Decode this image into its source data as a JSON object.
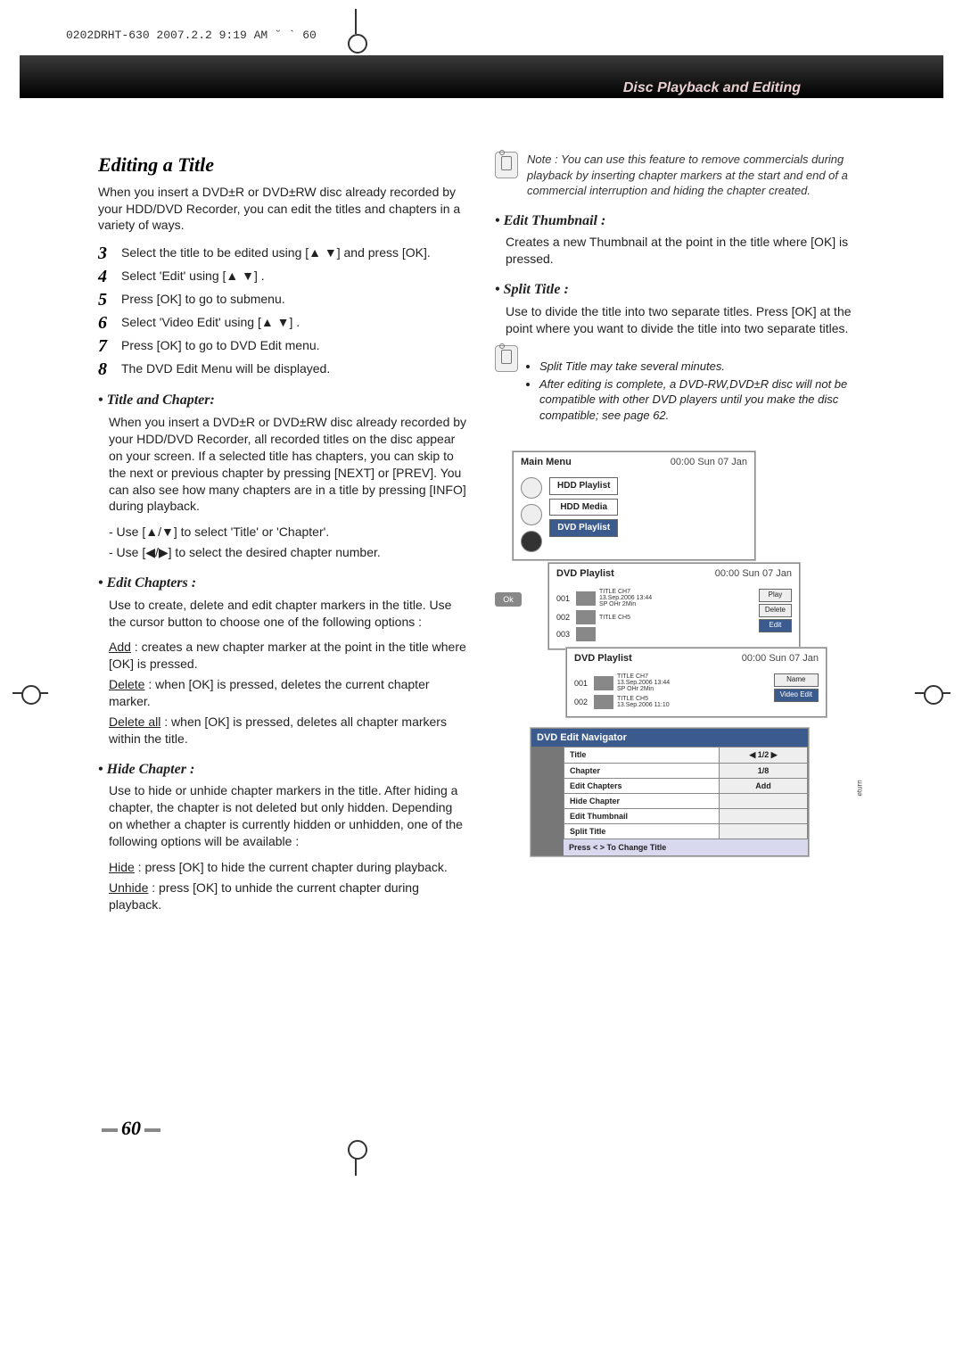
{
  "header_mark": "0202DRHT-630 2007.2.2 9:19 AM ˘   ` 60",
  "topbar_label": "Disc Playback and Editing",
  "left": {
    "title": "Editing a Title",
    "intro": "When you insert a DVD±R or DVD±RW disc already recorded by your HDD/DVD Recorder, you can edit the titles and chapters in a variety of ways.",
    "steps": [
      {
        "n": "3",
        "t": "Select the title to be edited using [▲ ▼] and press [OK]."
      },
      {
        "n": "4",
        "t": "Select 'Edit' using [▲ ▼] ."
      },
      {
        "n": "5",
        "t": "Press [OK] to go to submenu."
      },
      {
        "n": "6",
        "t": "Select 'Video Edit' using [▲ ▼] ."
      },
      {
        "n": "7",
        "t": "Press [OK] to go to DVD Edit menu."
      },
      {
        "n": "8",
        "t": "The DVD Edit Menu will be displayed."
      }
    ],
    "tc_head": "Title and Chapter:",
    "tc_body": "When you insert a DVD±R or DVD±RW disc already recorded by your HDD/DVD Recorder, all recorded titles on the disc appear on your screen. If a selected title has chapters, you can skip to the next or previous chapter by pressing [NEXT] or [PREV]. You can also see how many chapters are in a title by pressing [INFO] during playback.",
    "tc_sub1": "- Use [▲/▼] to select 'Title' or 'Chapter'.",
    "tc_sub2": "- Use [◀/▶] to select the desired chapter number.",
    "ec_head": "Edit Chapters :",
    "ec_body": "Use to create, delete and edit chapter markers in the title. Use the cursor button to choose one of the following options :",
    "ec_add_u": "Add",
    "ec_add": " : creates a new chapter marker at the point in the title where [OK] is pressed.",
    "ec_del_u": "Delete",
    "ec_del": " : when [OK] is pressed, deletes the current chapter marker.",
    "ec_delall_u": "Delete all",
    "ec_delall": " : when [OK] is pressed, deletes all chapter markers within the title.",
    "hc_head": "Hide Chapter :",
    "hc_body": "Use to hide or unhide chapter markers in the title. After hiding a chapter, the chapter is not deleted but only hidden. Depending on whether a chapter is currently hidden or unhidden, one of the following options will be available :",
    "hc_hide_u": "Hide",
    "hc_hide": " : press [OK] to hide the current chapter during playback.",
    "hc_unhide_u": "Unhide",
    "hc_unhide": " : press [OK] to unhide the current chapter during playback."
  },
  "right": {
    "note1": "Note : You can use this feature to remove commercials during playback by inserting chapter markers at the start and end of a commercial interruption and hiding the chapter created.",
    "et_head": "Edit Thumbnail :",
    "et_body": "Creates a new Thumbnail at the point in the title where [OK] is pressed.",
    "st_head": "Split Title :",
    "st_body": "Use to divide the title into two separate titles. Press [OK] at the point where you want to divide the title into two separate titles.",
    "note2a": "Split Title may take several minutes.",
    "note2b": "After editing is complete, a DVD-RW,DVD±R disc will not be compatible with other DVD players until you make the disc compatible; see page 62."
  },
  "menus": {
    "main_title": "Main Menu",
    "timestamp": "00:00 Sun 07 Jan",
    "btn_hdd_playlist": "HDD Playlist",
    "btn_hdd_media": "HDD Media",
    "btn_dvd_playlist": "DVD Playlist",
    "dvd_playlist_title": "DVD Playlist",
    "ok_label": "Ok",
    "row1": {
      "num": "001",
      "title": "TITLE CH7",
      "meta1": "13.Sep.2006 13:44",
      "meta2": "SP  OHr  2Min"
    },
    "row2": {
      "num": "002",
      "title": "TITLE CH5"
    },
    "row3": {
      "num": "003"
    },
    "row4": {
      "num": "001",
      "title": "TITLE CH7",
      "meta1": "13.Sep.2006 13:44",
      "meta2": "SP  OHr  2Min"
    },
    "row5": {
      "num": "002",
      "title": "TITLE CH5",
      "meta1": "13.Sep.2006 11:10"
    },
    "side_play": "Play",
    "side_delete": "Delete",
    "side_edit": "Edit",
    "side_name": "Name",
    "side_videoedit": "Video Edit",
    "nav_title": "DVD Edit Navigator",
    "nav_rows": [
      {
        "label": "Title",
        "val": "◀   1/2   ▶"
      },
      {
        "label": "Chapter",
        "val": "1/8"
      },
      {
        "label": "Edit Chapters",
        "val": "Add"
      },
      {
        "label": "Hide Chapter",
        "val": ""
      },
      {
        "label": "Edit Thumbnail",
        "val": ""
      },
      {
        "label": "Split Title",
        "val": ""
      }
    ],
    "nav_foot": "Press < > To  Change Title",
    "return": "eturn"
  },
  "page_num": "60"
}
